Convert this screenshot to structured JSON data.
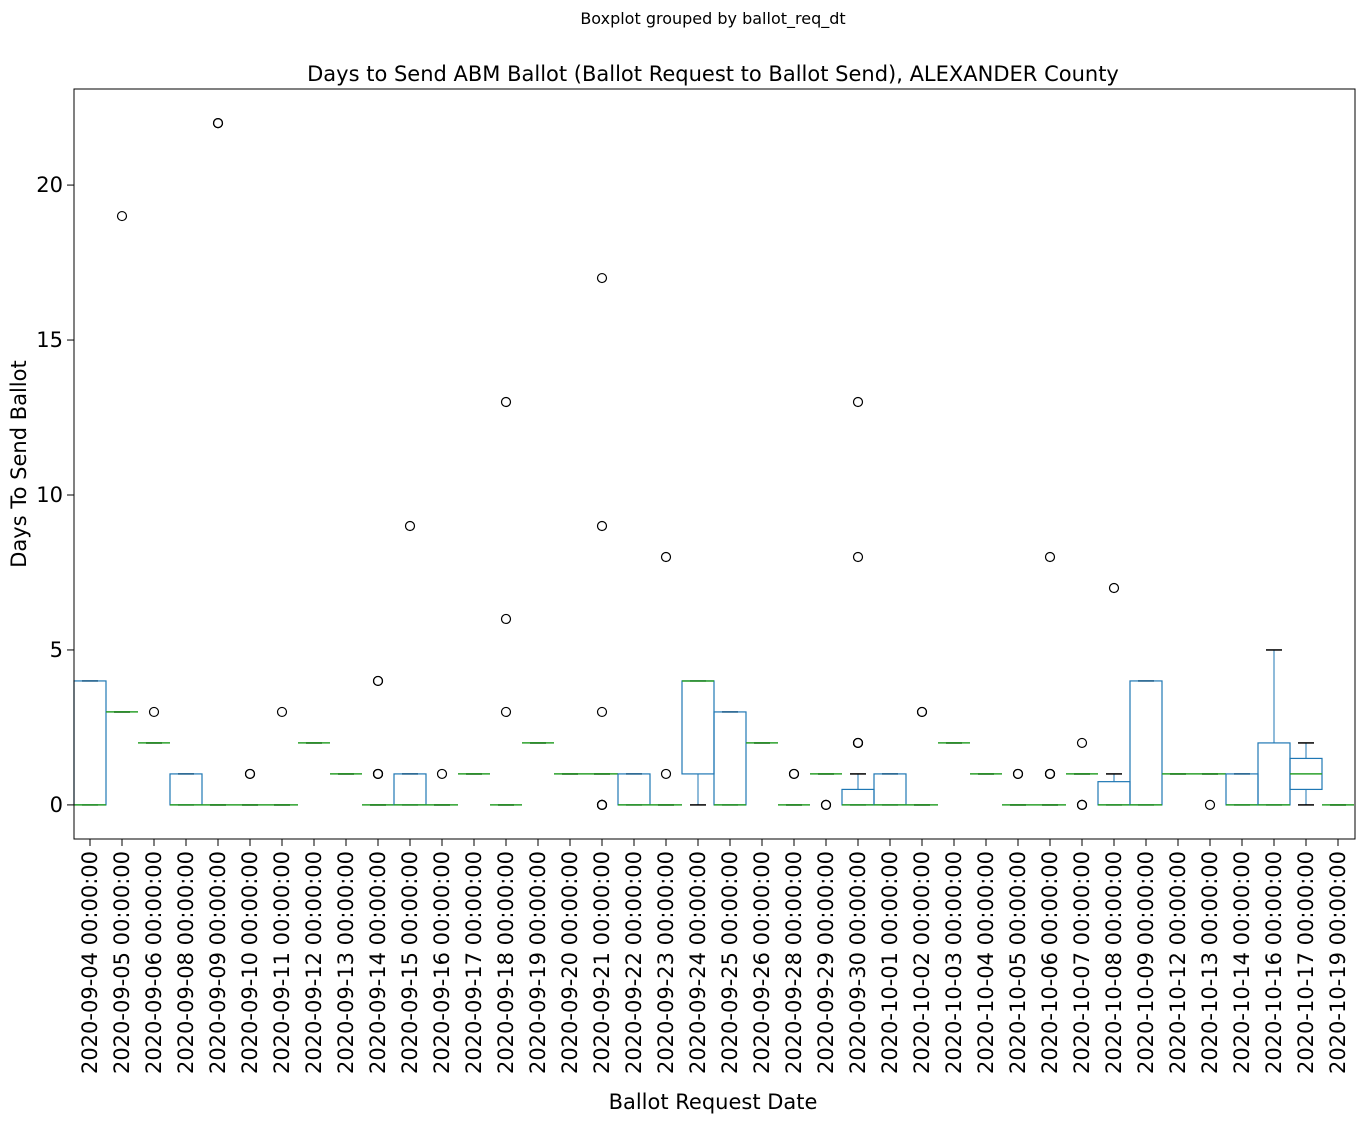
{
  "chart_data": {
    "type": "box",
    "suptitle": "Boxplot grouped by ballot_req_dt",
    "title": "Days to Send ABM Ballot (Ballot Request to Ballot Send), ALEXANDER County",
    "xlabel": "Ballot Request Date",
    "ylabel": "Days To Send Ballot",
    "ylim": [
      -1.1,
      23.1
    ],
    "yticks": [
      0,
      5,
      10,
      15,
      20
    ],
    "grid": false,
    "legend": "none",
    "colors": {
      "box": "#1f77b4",
      "median": "#2ca02c",
      "whisker": "#000000",
      "flier": "#000000"
    },
    "categories": [
      "2020-09-04 00:00:00",
      "2020-09-05 00:00:00",
      "2020-09-06 00:00:00",
      "2020-09-08 00:00:00",
      "2020-09-09 00:00:00",
      "2020-09-10 00:00:00",
      "2020-09-11 00:00:00",
      "2020-09-12 00:00:00",
      "2020-09-13 00:00:00",
      "2020-09-14 00:00:00",
      "2020-09-15 00:00:00",
      "2020-09-16 00:00:00",
      "2020-09-17 00:00:00",
      "2020-09-18 00:00:00",
      "2020-09-19 00:00:00",
      "2020-09-20 00:00:00",
      "2020-09-21 00:00:00",
      "2020-09-22 00:00:00",
      "2020-09-23 00:00:00",
      "2020-09-24 00:00:00",
      "2020-09-25 00:00:00",
      "2020-09-26 00:00:00",
      "2020-09-28 00:00:00",
      "2020-09-29 00:00:00",
      "2020-09-30 00:00:00",
      "2020-10-01 00:00:00",
      "2020-10-02 00:00:00",
      "2020-10-03 00:00:00",
      "2020-10-04 00:00:00",
      "2020-10-05 00:00:00",
      "2020-10-06 00:00:00",
      "2020-10-07 00:00:00",
      "2020-10-08 00:00:00",
      "2020-10-09 00:00:00",
      "2020-10-12 00:00:00",
      "2020-10-13 00:00:00",
      "2020-10-14 00:00:00",
      "2020-10-16 00:00:00",
      "2020-10-17 00:00:00",
      "2020-10-19 00:00:00"
    ],
    "boxes": [
      {
        "whislo": 0,
        "q1": 0,
        "med": 0,
        "q3": 4,
        "whishi": 4,
        "fliers": []
      },
      {
        "whislo": 3,
        "q1": 3,
        "med": 3,
        "q3": 3,
        "whishi": 3,
        "fliers": [
          19
        ]
      },
      {
        "whislo": 2,
        "q1": 2,
        "med": 2,
        "q3": 2,
        "whishi": 2,
        "fliers": [
          3
        ]
      },
      {
        "whislo": 0,
        "q1": 0,
        "med": 0,
        "q3": 1,
        "whishi": 1,
        "fliers": []
      },
      {
        "whislo": 0,
        "q1": 0,
        "med": 0,
        "q3": 0,
        "whishi": 0,
        "fliers": [
          22,
          22
        ]
      },
      {
        "whislo": 0,
        "q1": 0,
        "med": 0,
        "q3": 0,
        "whishi": 0,
        "fliers": [
          1,
          1
        ]
      },
      {
        "whislo": 0,
        "q1": 0,
        "med": 0,
        "q3": 0,
        "whishi": 0,
        "fliers": [
          3
        ]
      },
      {
        "whislo": 2,
        "q1": 2,
        "med": 2,
        "q3": 2,
        "whishi": 2,
        "fliers": []
      },
      {
        "whislo": 1,
        "q1": 1,
        "med": 1,
        "q3": 1,
        "whishi": 1,
        "fliers": []
      },
      {
        "whislo": 0,
        "q1": 0,
        "med": 0,
        "q3": 0,
        "whishi": 0,
        "fliers": [
          1,
          1,
          1,
          4,
          4
        ]
      },
      {
        "whislo": 0,
        "q1": 0,
        "med": 0,
        "q3": 1,
        "whishi": 1,
        "fliers": [
          9
        ]
      },
      {
        "whislo": 0,
        "q1": 0,
        "med": 0,
        "q3": 0,
        "whishi": 0,
        "fliers": [
          1
        ]
      },
      {
        "whislo": 1,
        "q1": 1,
        "med": 1,
        "q3": 1,
        "whishi": 1,
        "fliers": []
      },
      {
        "whislo": 0,
        "q1": 0,
        "med": 0,
        "q3": 0,
        "whishi": 0,
        "fliers": [
          3,
          6,
          13
        ]
      },
      {
        "whislo": 2,
        "q1": 2,
        "med": 2,
        "q3": 2,
        "whishi": 2,
        "fliers": []
      },
      {
        "whislo": 1,
        "q1": 1,
        "med": 1,
        "q3": 1,
        "whishi": 1,
        "fliers": []
      },
      {
        "whislo": 1,
        "q1": 1,
        "med": 1,
        "q3": 1,
        "whishi": 1,
        "fliers": [
          0,
          0,
          0,
          3,
          9,
          17
        ]
      },
      {
        "whislo": 0,
        "q1": 0,
        "med": 0,
        "q3": 1,
        "whishi": 1,
        "fliers": []
      },
      {
        "whislo": 0,
        "q1": 0,
        "med": 0,
        "q3": 0,
        "whishi": 0,
        "fliers": [
          1,
          8
        ]
      },
      {
        "whislo": 0,
        "q1": 1,
        "med": 4,
        "q3": 4,
        "whishi": 4,
        "fliers": []
      },
      {
        "whislo": 0,
        "q1": 0,
        "med": 0,
        "q3": 3,
        "whishi": 3,
        "fliers": []
      },
      {
        "whislo": 2,
        "q1": 2,
        "med": 2,
        "q3": 2,
        "whishi": 2,
        "fliers": []
      },
      {
        "whislo": 0,
        "q1": 0,
        "med": 0,
        "q3": 0,
        "whishi": 0,
        "fliers": [
          1,
          1
        ]
      },
      {
        "whislo": 1,
        "q1": 1,
        "med": 1,
        "q3": 1,
        "whishi": 1,
        "fliers": [
          0,
          0
        ]
      },
      {
        "whislo": 0,
        "q1": 0,
        "med": 0,
        "q3": 0.5,
        "whishi": 1,
        "fliers": [
          2,
          2,
          2,
          8,
          13
        ]
      },
      {
        "whislo": 0,
        "q1": 0,
        "med": 0,
        "q3": 1,
        "whishi": 1,
        "fliers": []
      },
      {
        "whislo": 0,
        "q1": 0,
        "med": 0,
        "q3": 0,
        "whishi": 0,
        "fliers": [
          3,
          3
        ]
      },
      {
        "whislo": 2,
        "q1": 2,
        "med": 2,
        "q3": 2,
        "whishi": 2,
        "fliers": []
      },
      {
        "whislo": 1,
        "q1": 1,
        "med": 1,
        "q3": 1,
        "whishi": 1,
        "fliers": []
      },
      {
        "whislo": 0,
        "q1": 0,
        "med": 0,
        "q3": 0,
        "whishi": 0,
        "fliers": [
          1,
          1
        ]
      },
      {
        "whislo": 0,
        "q1": 0,
        "med": 0,
        "q3": 0,
        "whishi": 0,
        "fliers": [
          1,
          1,
          1,
          8
        ]
      },
      {
        "whislo": 1,
        "q1": 1,
        "med": 1,
        "q3": 1,
        "whishi": 1,
        "fliers": [
          0,
          0,
          2
        ]
      },
      {
        "whislo": 0,
        "q1": 0,
        "med": 0,
        "q3": 0.75,
        "whishi": 1,
        "fliers": [
          7
        ]
      },
      {
        "whislo": 0,
        "q1": 0,
        "med": 0,
        "q3": 4,
        "whishi": 4,
        "fliers": []
      },
      {
        "whislo": 1,
        "q1": 1,
        "med": 1,
        "q3": 1,
        "whishi": 1,
        "fliers": []
      },
      {
        "whislo": 1,
        "q1": 1,
        "med": 1,
        "q3": 1,
        "whishi": 1,
        "fliers": [
          0
        ]
      },
      {
        "whislo": 0,
        "q1": 0,
        "med": 0,
        "q3": 1,
        "whishi": 1,
        "fliers": []
      },
      {
        "whislo": 0,
        "q1": 0,
        "med": 0,
        "q3": 2,
        "whishi": 5,
        "fliers": []
      },
      {
        "whislo": 0,
        "q1": 0.5,
        "med": 1,
        "q3": 1.5,
        "whishi": 2,
        "fliers": []
      },
      {
        "whislo": 0,
        "q1": 0,
        "med": 0,
        "q3": 0,
        "whishi": 0,
        "fliers": []
      }
    ]
  }
}
